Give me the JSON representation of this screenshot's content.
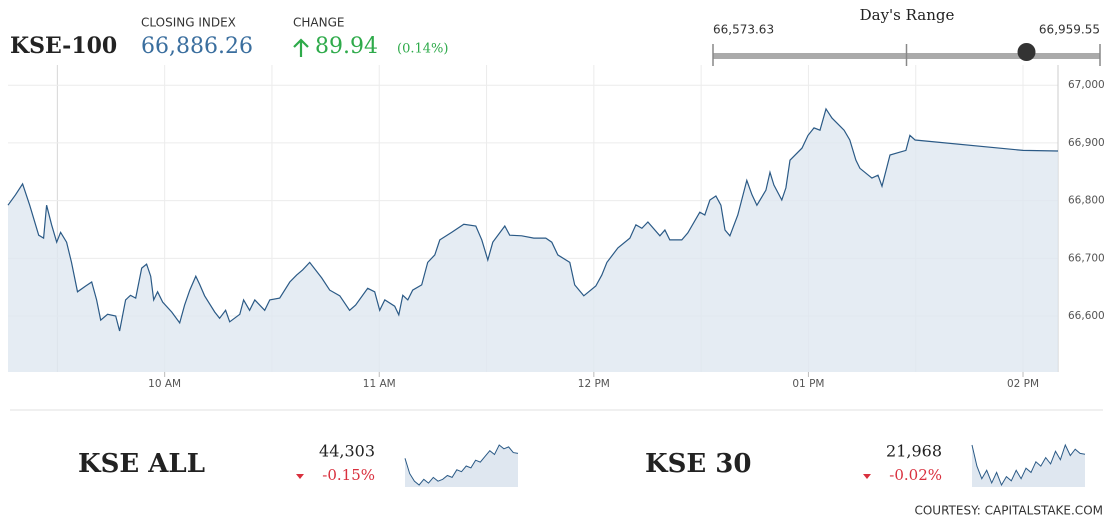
{
  "header": {
    "index_name": "KSE-100",
    "closing_index": {
      "label": "CLOSING INDEX",
      "value": 66886.26,
      "value_label": "66,886.26"
    },
    "change": {
      "label": "CHANGE",
      "value": 89.94,
      "percent_label": "(0.14%)"
    },
    "days_range": {
      "label": "Day's Range",
      "low": 66573.63,
      "low_label": "66,573.63",
      "high": 66959.55,
      "high_label": "66,959.55"
    }
  },
  "chart_data": {
    "type": "line",
    "color": "#2b5a86",
    "fill": "#dfe7f0",
    "x": [
      9.27,
      9.305,
      9.338,
      9.371,
      9.413,
      9.436,
      9.45,
      9.473,
      9.497,
      9.515,
      9.543,
      9.566,
      9.594,
      9.632,
      9.66,
      9.683,
      9.702,
      9.734,
      9.772,
      9.79,
      9.818,
      9.841,
      9.865,
      9.893,
      9.916,
      9.935,
      9.949,
      9.967,
      9.991,
      10.033,
      10.07,
      10.093,
      10.117,
      10.145,
      10.163,
      10.186,
      10.233,
      10.256,
      10.284,
      10.303,
      10.35,
      10.368,
      10.396,
      10.42,
      10.466,
      10.49,
      10.536,
      10.583,
      10.615,
      10.643,
      10.676,
      10.732,
      10.769,
      10.816,
      10.862,
      10.89,
      10.946,
      10.979,
      11.002,
      11.026,
      11.072,
      11.091,
      11.11,
      11.133,
      11.156,
      11.198,
      11.226,
      11.259,
      11.282,
      11.338,
      11.394,
      11.45,
      11.478,
      11.506,
      11.529,
      11.585,
      11.608,
      11.664,
      11.72,
      11.776,
      11.804,
      11.832,
      11.888,
      11.911,
      11.953,
      12.009,
      12.037,
      12.061,
      12.112,
      12.168,
      12.196,
      12.224,
      12.252,
      12.308,
      12.331,
      12.354,
      12.41,
      12.438,
      12.494,
      12.517,
      12.541,
      12.569,
      12.592,
      12.611,
      12.634,
      12.671,
      12.713,
      12.737,
      12.76,
      12.802,
      12.821,
      12.839,
      12.876,
      12.895,
      12.914,
      12.97,
      12.998,
      13.026,
      13.054,
      13.082,
      13.11,
      13.166,
      13.193,
      13.221,
      13.24,
      13.296,
      13.324,
      13.343,
      13.38,
      13.427,
      13.454,
      13.473,
      13.497,
      14,
      14.163
    ],
    "values": [
      66792,
      66810,
      66829,
      66792,
      66740,
      66735,
      66792,
      66758,
      66728,
      66745,
      66728,
      66693,
      66642,
      66652,
      66659,
      66628,
      66593,
      66603,
      66600,
      66574,
      66628,
      66636,
      66631,
      66683,
      66690,
      66669,
      66628,
      66642,
      66624,
      66607,
      66588,
      66619,
      66645,
      66669,
      66655,
      66635,
      66607,
      66596,
      66610,
      66590,
      66603,
      66628,
      66610,
      66628,
      66610,
      66628,
      66631,
      66659,
      66671,
      66680,
      66693,
      66666,
      66645,
      66635,
      66610,
      66619,
      66648,
      66642,
      66610,
      66628,
      66617,
      66602,
      66636,
      66628,
      66645,
      66654,
      66693,
      66706,
      66732,
      66745,
      66759,
      66756,
      66732,
      66697,
      66728,
      66756,
      66740,
      66739,
      66735,
      66735,
      66728,
      66706,
      66693,
      66654,
      66635,
      66652,
      66671,
      66693,
      66718,
      66735,
      66758,
      66752,
      66763,
      66739,
      66749,
      66732,
      66732,
      66744,
      66780,
      66775,
      66801,
      66808,
      66792,
      66749,
      66739,
      66775,
      66835,
      66810,
      66792,
      66818,
      66849,
      66827,
      66801,
      66822,
      66870,
      66891,
      66913,
      66926,
      66922,
      66959,
      66943,
      66922,
      66905,
      66870,
      66856,
      66839,
      66844,
      66825,
      66879,
      66884,
      66887,
      66913,
      66905,
      66887,
      66886
    ],
    "xlim": [
      9.27,
      14.163
    ],
    "ylim": [
      66503,
      67035
    ],
    "xticks": [
      {
        "value": 10,
        "label": "10 AM"
      },
      {
        "value": 11,
        "label": "11 AM"
      },
      {
        "value": 12,
        "label": "12 PM"
      },
      {
        "value": 13,
        "label": "01 PM"
      },
      {
        "value": 14,
        "label": "02 PM"
      }
    ],
    "x_minor_grid": [
      9.5,
      10.5,
      11.5,
      12.5,
      13.5
    ],
    "yticks": [
      {
        "value": 66600,
        "label": "66,600"
      },
      {
        "value": 66700,
        "label": "66,700"
      },
      {
        "value": 66800,
        "label": "66,800"
      },
      {
        "value": 66900,
        "label": "66,900"
      },
      {
        "value": 67000,
        "label": "67,000"
      }
    ],
    "grid": true
  },
  "indices": [
    {
      "name": "KSE ALL",
      "value_label": "44,303",
      "change_label": "-0.15%",
      "change_percent": -0.15,
      "sparkline": [
        44290,
        44250,
        44230,
        44220,
        44235,
        44225,
        44240,
        44230,
        44235,
        44245,
        44240,
        44260,
        44255,
        44270,
        44265,
        44285,
        44280,
        44295,
        44310,
        44300,
        44325,
        44315,
        44320,
        44305,
        44303
      ]
    },
    {
      "name": "KSE 30",
      "value_label": "21,968",
      "change_label": "-0.02%",
      "change_percent": -0.02,
      "sparkline": [
        21990,
        21940,
        21910,
        21930,
        21900,
        21925,
        21895,
        21915,
        21905,
        21930,
        21910,
        21935,
        21925,
        21950,
        21940,
        21960,
        21945,
        21975,
        21955,
        21990,
        21965,
        21980,
        21970,
        21968
      ]
    }
  ],
  "footer": {
    "courtesy": "COURTESY: CAPITALSTAKE.COM"
  }
}
